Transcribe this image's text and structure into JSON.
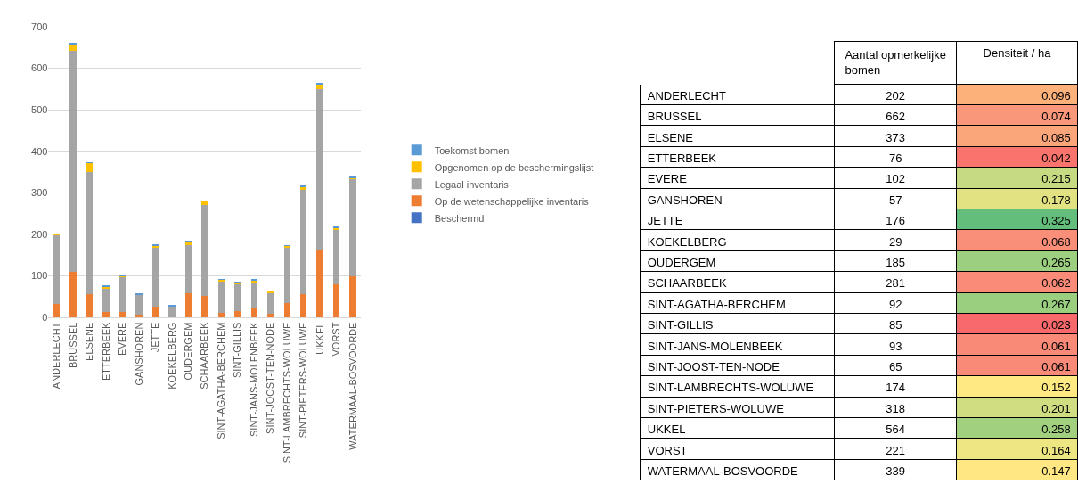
{
  "chart_data": [
    {
      "type": "bar",
      "stacked": true,
      "grid": "y",
      "legend": "right",
      "ylim": [
        0,
        700
      ],
      "yticks": [
        0,
        100,
        200,
        300,
        400,
        500,
        600,
        700
      ],
      "categories": [
        "ANDERLECHT",
        "BRUSSEL",
        "ELSENE",
        "ETTERBEEK",
        "EVERE",
        "GANSHOREN",
        "JETTE",
        "KOEKELBERG",
        "OUDERGEM",
        "SCHAARBEEK",
        "SINT-AGATHA-BERCHEM",
        "SINT-GILLIS",
        "SINT-JANS-MOLENBEEK",
        "SINT-JOOST-TEN-NODE",
        "SINT-LAMBRECHTS-WOLUWE",
        "SINT-PIETERS-WOLUWE",
        "UKKEL",
        "VORST",
        "WATERMAAL-BOSVOORDE"
      ],
      "series": [
        {
          "name": "Beschermd",
          "color": "#4472c4",
          "values": [
            0,
            0,
            0,
            0,
            0,
            0,
            0,
            0,
            0,
            0,
            0,
            0,
            0,
            0,
            0,
            0,
            0,
            0,
            0
          ]
        },
        {
          "name": "Op de wetenschappelijke inventaris",
          "color": "#ed7d31",
          "values": [
            32,
            110,
            56,
            14,
            13,
            6,
            26,
            null,
            59,
            52,
            11,
            16,
            23,
            9,
            34,
            56,
            161,
            80,
            100
          ]
        },
        {
          "name": "Legaal inventaris",
          "color": "#a5a5a5",
          "values": [
            167,
            532,
            295,
            57,
            86,
            49,
            142,
            27,
            115,
            219,
            75,
            63,
            62,
            50,
            134,
            252,
            389,
            133,
            232
          ]
        },
        {
          "name": "Opgenomen op de beschermingslijst",
          "color": "#ffc000",
          "values": [
            2,
            16,
            21,
            4,
            1,
            null,
            5,
            0,
            9,
            9,
            5,
            5,
            4,
            4,
            5,
            8,
            12,
            4,
            5
          ]
        },
        {
          "name": "Toekomst bomen",
          "color": "#5b9bd5",
          "values": [
            1,
            4,
            1,
            1,
            2,
            2,
            3,
            2,
            2,
            1,
            1,
            1,
            4,
            2,
            1,
            2,
            2,
            4,
            2
          ]
        }
      ]
    },
    {
      "type": "heatmap",
      "data_labels": true,
      "categories": [
        "Aantal opmerkelijke bomen",
        "Densiteit / ha"
      ],
      "y_categories": [
        "ANDERLECHT",
        "BRUSSEL",
        "ELSENE",
        "ETTERBEEK",
        "EVERE",
        "GANSHOREN",
        "JETTE",
        "KOEKELBERG",
        "OUDERGEM",
        "SCHAARBEEK",
        "SINT-AGATHA-BERCHEM",
        "SINT-GILLIS",
        "SINT-JANS-MOLENBEEK",
        "SINT-JOOST-TEN-NODE",
        "SINT-LAMBRECHTS-WOLUWE",
        "SINT-PIETERS-WOLUWE",
        "UKKEL",
        "VORST",
        "WATERMAAL-BOSVOORDE"
      ],
      "cells": [
        [
          202,
          0.096
        ],
        [
          662,
          0.074
        ],
        [
          373,
          0.085
        ],
        [
          76,
          0.042
        ],
        [
          102,
          0.215
        ],
        [
          57,
          0.178
        ],
        [
          176,
          0.325
        ],
        [
          29,
          0.068
        ],
        [
          185,
          0.265
        ],
        [
          281,
          0.062
        ],
        [
          92,
          0.267
        ],
        [
          85,
          0.023
        ],
        [
          93,
          0.061
        ],
        [
          65,
          0.061
        ],
        [
          174,
          0.152
        ],
        [
          318,
          0.201
        ],
        [
          564,
          0.258
        ],
        [
          221,
          0.164
        ],
        [
          339,
          0.147
        ]
      ],
      "colors": [
        [
          null,
          "#fcb07a"
        ],
        [
          null,
          "#f9977a"
        ],
        [
          null,
          "#fba67a"
        ],
        [
          null,
          "#f8746d"
        ],
        [
          null,
          "#c5da81"
        ],
        [
          null,
          "#e3e282"
        ],
        [
          null,
          "#63be7b"
        ],
        [
          null,
          "#f98f79"
        ],
        [
          null,
          "#9ccf7f"
        ],
        [
          null,
          "#f98b78"
        ],
        [
          null,
          "#9acf7f"
        ],
        [
          null,
          "#f8696b"
        ],
        [
          null,
          "#f98a77"
        ],
        [
          null,
          "#f98a77"
        ],
        [
          null,
          "#fee983"
        ],
        [
          null,
          "#d1dd81"
        ],
        [
          null,
          "#a1d07f"
        ],
        [
          null,
          "#eee583"
        ],
        [
          null,
          "#ffe884"
        ]
      ]
    }
  ]
}
